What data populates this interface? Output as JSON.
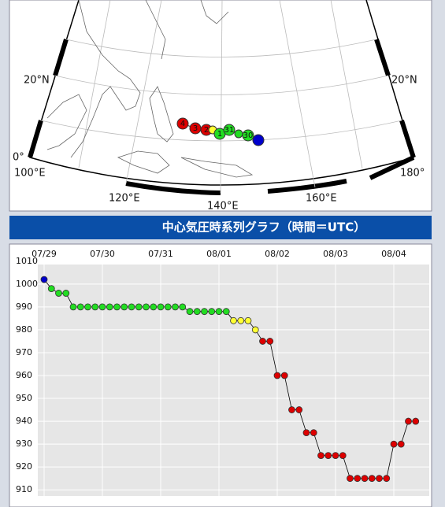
{
  "map": {
    "lat_labels": [
      "20°N",
      "20°N",
      "0°"
    ],
    "lon_labels": [
      "100°E",
      "120°E",
      "140°E",
      "160°E",
      "180°"
    ],
    "track_labels": [
      "4",
      "3",
      "2",
      "1",
      "31",
      "30"
    ]
  },
  "header": {
    "title": "中心気圧時系列グラフ（時間＝UTC）"
  },
  "chart_data": {
    "type": "line",
    "x": [
      0,
      3,
      6,
      9,
      12,
      15,
      18,
      21,
      24,
      27,
      30,
      33,
      36,
      39,
      42,
      45,
      48,
      51,
      54,
      57,
      60,
      63,
      66,
      69,
      72,
      75,
      78,
      81,
      84,
      87,
      90,
      93,
      96,
      99,
      102,
      105,
      108,
      111,
      114,
      117,
      120,
      123,
      126,
      129,
      132,
      135,
      138,
      141,
      144,
      147,
      150,
      153
    ],
    "values": [
      1002,
      998,
      996,
      996,
      990,
      990,
      990,
      990,
      990,
      990,
      990,
      990,
      990,
      990,
      990,
      990,
      990,
      990,
      990,
      990,
      988,
      988,
      988,
      988,
      988,
      988,
      984,
      984,
      984,
      980,
      975,
      975,
      960,
      960,
      945,
      945,
      935,
      935,
      925,
      925,
      925,
      925,
      915,
      915,
      915,
      915,
      915,
      915,
      930,
      930,
      940,
      940
    ],
    "colors": [
      "#0000cc",
      "#22dd22",
      "#22dd22",
      "#22dd22",
      "#22dd22",
      "#22dd22",
      "#22dd22",
      "#22dd22",
      "#22dd22",
      "#22dd22",
      "#22dd22",
      "#22dd22",
      "#22dd22",
      "#22dd22",
      "#22dd22",
      "#22dd22",
      "#22dd22",
      "#22dd22",
      "#22dd22",
      "#22dd22",
      "#22dd22",
      "#22dd22",
      "#22dd22",
      "#22dd22",
      "#22dd22",
      "#22dd22",
      "#ffff33",
      "#ffff33",
      "#ffff33",
      "#ffff33",
      "#dd0000",
      "#dd0000",
      "#dd0000",
      "#dd0000",
      "#dd0000",
      "#dd0000",
      "#dd0000",
      "#dd0000",
      "#dd0000",
      "#dd0000",
      "#dd0000",
      "#dd0000",
      "#dd0000",
      "#dd0000",
      "#dd0000",
      "#dd0000",
      "#dd0000",
      "#dd0000",
      "#dd0000",
      "#dd0000",
      "#dd0000",
      "#dd0000"
    ],
    "line_color": "#000000",
    "xlim": [
      -2.6,
      158.6
    ],
    "xticks": [
      {
        "value": 0,
        "label": "07/29"
      },
      {
        "value": 24,
        "label": "07/30"
      },
      {
        "value": 48,
        "label": "07/31"
      },
      {
        "value": 72,
        "label": "08/01"
      },
      {
        "value": 96,
        "label": "08/02"
      },
      {
        "value": 120,
        "label": "08/03"
      },
      {
        "value": 144,
        "label": "08/04"
      }
    ],
    "ylim": [
      908,
      1012
    ],
    "yticks": [
      910,
      920,
      930,
      940,
      950,
      960,
      970,
      980,
      990,
      1000,
      1010
    ],
    "grid": true
  }
}
